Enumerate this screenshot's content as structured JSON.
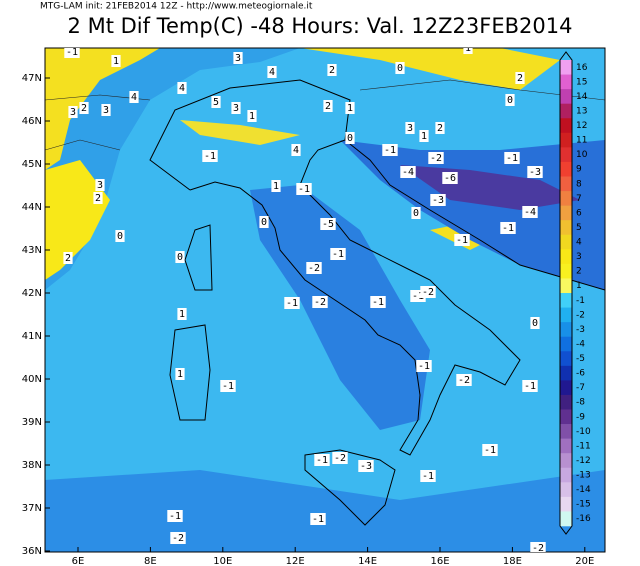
{
  "header": {
    "subtitle": "MTG-LAM init: 21FEB2014 12Z - http://www.meteogiornale.it",
    "title": "2 Mt Dif Temp(C) -48 Hours: Val. 12Z23FEB2014"
  },
  "axes": {
    "latitude_labels": [
      "47N",
      "46N",
      "45N",
      "44N",
      "43N",
      "42N",
      "41N",
      "40N",
      "39N",
      "38N",
      "37N",
      "36N"
    ],
    "longitude_labels": [
      "6E",
      "8E",
      "10E",
      "12E",
      "14E",
      "16E",
      "18E",
      "20E"
    ]
  },
  "colorbar": {
    "labels": [
      "16",
      "15",
      "14",
      "13",
      "12",
      "11",
      "10",
      "9",
      "8",
      "7",
      "6",
      "5",
      "4",
      "3",
      "2",
      "1",
      "-1",
      "-2",
      "-3",
      "-4",
      "-5",
      "-6",
      "-7",
      "-8",
      "-9",
      "-10",
      "-11",
      "-12",
      "-13",
      "-14",
      "-15",
      "-16"
    ]
  },
  "map_labels": [
    "-1",
    "1",
    "3",
    "4",
    "2",
    "0",
    "1",
    "2",
    "4",
    "4",
    "2",
    "3",
    "3",
    "5",
    "3",
    "1",
    "2",
    "1",
    "0",
    "3",
    "2",
    "1",
    "-1",
    "0",
    "4",
    "-1",
    "-2",
    "-1",
    "-3",
    "-4",
    "-6",
    "3",
    "2",
    "1",
    "-1",
    "-3",
    "-4",
    "0",
    "-5",
    "-1",
    "-1",
    "0",
    "0",
    "-1",
    "2",
    "0",
    "-2",
    "-1",
    "-2",
    "-1",
    "-1",
    "-2",
    "1",
    "0",
    "-1",
    "1",
    "-2",
    "-1",
    "-1",
    "-1",
    "-1",
    "-2",
    "-3",
    "-1",
    "-1",
    "-1",
    "-2",
    "-2"
  ]
}
